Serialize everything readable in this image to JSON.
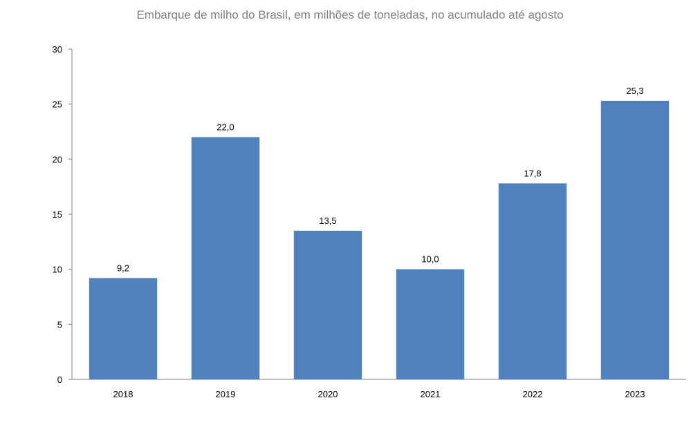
{
  "chart_data": {
    "type": "bar",
    "title": "Embarque de milho do Brasil, em milhões de toneladas, no acumulado até agosto",
    "xlabel": "",
    "ylabel": "",
    "categories": [
      "2018",
      "2019",
      "2020",
      "2021",
      "2022",
      "2023"
    ],
    "values": [
      9.2,
      22.0,
      13.5,
      10.0,
      17.8,
      25.3
    ],
    "data_labels": [
      "9,2",
      "22,0",
      "13,5",
      "10,0",
      "17,8",
      "25,3"
    ],
    "ylim": [
      0,
      30
    ],
    "yticks": [
      0,
      5,
      10,
      15,
      20,
      25,
      30
    ],
    "bar_color": "#4f81bd",
    "axis_color": "#868686",
    "grid": false,
    "legend": "none"
  }
}
